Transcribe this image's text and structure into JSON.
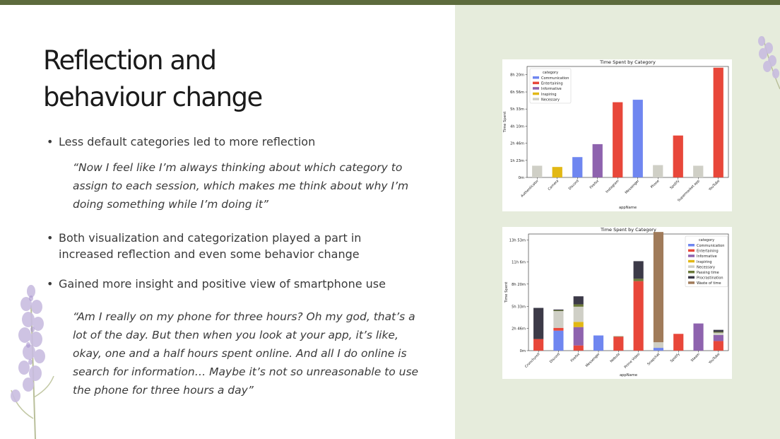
{
  "slide": {
    "title_line1": "Reflection and",
    "title_line2": "behaviour change",
    "bullets": [
      "Less default categories led to more reflection",
      "Both visualization and categorization played a part in increased reflection and even some behavior change",
      "Gained more insight and positive view of smartphone use"
    ],
    "bullet_mark": "•",
    "quotes": [
      "“Now I feel like I’m always thinking about which category to assign to each session, which makes me think about why I’m doing something while I’m doing it”",
      "“Am I really on my phone for three hours? Oh my god, that’s a lot of the day. But then when you look at your app, it’s like, okay, one and a half hours spent online. And all I do online is search for information… Maybe it’s not so unreasonable to use the phone for three hours a day”"
    ]
  },
  "chart_data": [
    {
      "type": "bar",
      "title": "Time Spent by Category",
      "xlabel": "appName",
      "ylabel": "Time Spent",
      "ylim": [
        0,
        9.0
      ],
      "yticks": [
        0,
        1.3833,
        2.7667,
        4.1667,
        5.55,
        6.9333,
        8.3333
      ],
      "ytick_labels": [
        "0m",
        "1h 23m",
        "2h 46m",
        "4h 10m",
        "5h 33m",
        "6h 56m",
        "8h 20m"
      ],
      "legend_title": "category",
      "legend_position": "top-left",
      "categories_legend": [
        {
          "name": "Communication",
          "color": "#6f86f0"
        },
        {
          "name": "Entertaining",
          "color": "#e8473a"
        },
        {
          "name": "Informative",
          "color": "#8e63ae"
        },
        {
          "name": "Inspiring",
          "color": "#e2b814"
        },
        {
          "name": "Necessary",
          "color": "#cfcfc6"
        }
      ],
      "categories": [
        "Authenticator",
        "Camera",
        "Discord",
        "Firefox",
        "Instagram",
        "Messenger",
        "Phone",
        "Spotify",
        "Supermarket app",
        "YouTube"
      ],
      "values": [
        0.95,
        0.85,
        1.65,
        2.7,
        6.1,
        6.3,
        1.0,
        3.4,
        0.95,
        8.9
      ],
      "bar_categories": [
        "Necessary",
        "Inspiring",
        "Communication",
        "Informative",
        "Entertaining",
        "Communication",
        "Necessary",
        "Entertaining",
        "Necessary",
        "Entertaining"
      ]
    },
    {
      "type": "bar",
      "stacked": true,
      "title": "Time Spent by Category",
      "xlabel": "appName",
      "ylabel": "Time Spent",
      "ylim": [
        0,
        14.6
      ],
      "yticks": [
        0,
        2.7667,
        5.55,
        8.3333,
        11.1,
        13.85
      ],
      "ytick_labels": [
        "0m",
        "2h 46m",
        "5h 33m",
        "8h 20m",
        "11h 6m",
        "13h 53m"
      ],
      "legend_title": "category",
      "legend_position": "top-right",
      "categories_legend": [
        {
          "name": "Communication",
          "color": "#6f86f0"
        },
        {
          "name": "Entertaining",
          "color": "#e8473a"
        },
        {
          "name": "Informative",
          "color": "#8e63ae"
        },
        {
          "name": "Inspiring",
          "color": "#e2b814"
        },
        {
          "name": "Necessary",
          "color": "#cfcfc6"
        },
        {
          "name": "Passing time",
          "color": "#6b7a3a"
        },
        {
          "name": "Procrastination",
          "color": "#3c3a48"
        },
        {
          "name": "Waste of time",
          "color": "#a07b5a"
        }
      ],
      "categories": [
        "Crunchyroll",
        "Discord",
        "Firefox",
        "Messenger",
        "Nebula",
        "Prime Video",
        "Snapchat",
        "Spotify",
        "Steam",
        "YouTube"
      ],
      "series": [
        {
          "name": "Communication",
          "values": [
            0,
            2.5,
            0,
            1.9,
            0,
            0,
            0.35,
            0,
            0,
            0
          ]
        },
        {
          "name": "Entertaining",
          "values": [
            1.45,
            0.35,
            0.65,
            0,
            1.75,
            8.7,
            0,
            2.1,
            0,
            1.2
          ]
        },
        {
          "name": "Informative",
          "values": [
            0,
            0,
            2.3,
            0,
            0,
            0,
            0,
            0,
            3.4,
            0.75
          ]
        },
        {
          "name": "Inspiring",
          "values": [
            0,
            0,
            0.65,
            0,
            0,
            0,
            0,
            0,
            0,
            0
          ]
        },
        {
          "name": "Necessary",
          "values": [
            0,
            2.1,
            1.9,
            0,
            0,
            0,
            0.7,
            0,
            0,
            0.3
          ]
        },
        {
          "name": "Passing time",
          "values": [
            0,
            0.1,
            0.3,
            0,
            0.05,
            0.3,
            0,
            0,
            0,
            0.1
          ]
        },
        {
          "name": "Procrastination",
          "values": [
            3.9,
            0.1,
            1.0,
            0,
            0,
            2.2,
            0,
            0,
            0,
            0.25
          ]
        },
        {
          "name": "Waste of time",
          "values": [
            0,
            0,
            0,
            0,
            0,
            0,
            13.8,
            0,
            0,
            0
          ]
        }
      ]
    }
  ]
}
